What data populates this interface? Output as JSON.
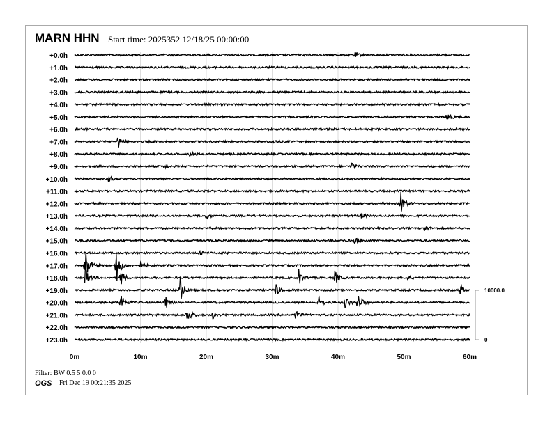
{
  "header": {
    "station": "MARN HHN",
    "start_time": "Start time: 2025352 12/18/25 00:00:00"
  },
  "footer": {
    "filter": "Filter: BW 0.5 5 0.0 0",
    "org": "OGS",
    "generated": "Fri Dec 19 00:21:35 2025"
  },
  "chart_data": {
    "type": "helicorder",
    "row_labels": [
      "+0.0h",
      "+1.0h",
      "+2.0h",
      "+3.0h",
      "+4.0h",
      "+5.0h",
      "+6.0h",
      "+7.0h",
      "+8.0h",
      "+9.0h",
      "+10.0h",
      "+11.0h",
      "+12.0h",
      "+13.0h",
      "+14.0h",
      "+15.0h",
      "+16.0h",
      "+17.0h",
      "+18.0h",
      "+19.0h",
      "+20.0h",
      "+21.0h",
      "+22.0h",
      "+23.0h"
    ],
    "x_ticks": [
      "0m",
      "10m",
      "20m",
      "30m",
      "40m",
      "50m",
      "60m"
    ],
    "xlim": [
      0,
      60
    ],
    "grid": true,
    "scale": {
      "top_label": "10000.0",
      "bottom_label": "0"
    },
    "trace_color": "#000000",
    "events": [
      {
        "hour": 0,
        "minute": 42.5,
        "amp": 600
      },
      {
        "hour": 5,
        "minute": 56.5,
        "amp": 1200
      },
      {
        "hour": 7,
        "minute": 6.5,
        "amp": 1500
      },
      {
        "hour": 7,
        "minute": 30,
        "amp": 500
      },
      {
        "hour": 8,
        "minute": 17.5,
        "amp": 1200
      },
      {
        "hour": 9,
        "minute": 42,
        "amp": 1000
      },
      {
        "hour": 9,
        "minute": 13.5,
        "amp": 400
      },
      {
        "hour": 10,
        "minute": 5,
        "amp": 900
      },
      {
        "hour": 12,
        "minute": 49.5,
        "amp": 2500
      },
      {
        "hour": 13,
        "minute": 20,
        "amp": 500
      },
      {
        "hour": 13,
        "minute": 43.5,
        "amp": 600
      },
      {
        "hour": 14,
        "minute": 53,
        "amp": 700
      },
      {
        "hour": 15,
        "minute": 42.5,
        "amp": 700
      },
      {
        "hour": 16,
        "minute": 19,
        "amp": 700
      },
      {
        "hour": 17,
        "minute": 1.5,
        "amp": 5000
      },
      {
        "hour": 17,
        "minute": 10,
        "amp": 700
      },
      {
        "hour": 17,
        "minute": 6.3,
        "amp": 4500
      },
      {
        "hour": 18,
        "minute": 1.5,
        "amp": 2500
      },
      {
        "hour": 18,
        "minute": 7,
        "amp": 2000
      },
      {
        "hour": 18,
        "minute": 34,
        "amp": 1800
      },
      {
        "hour": 18,
        "minute": 39.5,
        "amp": 1500
      },
      {
        "hour": 18,
        "minute": 50.5,
        "amp": 600
      },
      {
        "hour": 19,
        "minute": 30.5,
        "amp": 1500
      },
      {
        "hour": 19,
        "minute": 16,
        "amp": 3000
      },
      {
        "hour": 19,
        "minute": 58.5,
        "amp": 1200
      },
      {
        "hour": 20,
        "minute": 7,
        "amp": 2200
      },
      {
        "hour": 20,
        "minute": 13.5,
        "amp": 2500
      },
      {
        "hour": 20,
        "minute": 37,
        "amp": 1600
      },
      {
        "hour": 20,
        "minute": 41,
        "amp": 1500
      },
      {
        "hour": 20,
        "minute": 43,
        "amp": 2200
      },
      {
        "hour": 21,
        "minute": 17,
        "amp": 2500
      },
      {
        "hour": 21,
        "minute": 21,
        "amp": 900
      },
      {
        "hour": 21,
        "minute": 33.5,
        "amp": 1000
      },
      {
        "hour": 22,
        "minute": 5.5,
        "amp": 500
      }
    ]
  }
}
